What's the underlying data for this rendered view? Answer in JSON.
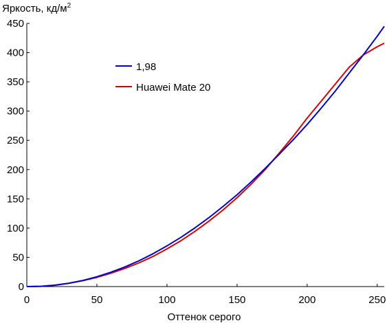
{
  "chart_data": {
    "type": "line",
    "title": "",
    "ylabel": "Яркость, кд/м",
    "ylabel_superscript": "2",
    "xlabel": "Оттенок серого",
    "xlim": [
      0,
      255
    ],
    "ylim": [
      0,
      450
    ],
    "xticks": [
      0,
      50,
      100,
      150,
      200,
      250
    ],
    "yticks": [
      0,
      50,
      100,
      150,
      200,
      250,
      300,
      350,
      400,
      450
    ],
    "grid": false,
    "legend_position": "upper-left",
    "series": [
      {
        "name": "1,98",
        "color": "#0000cc",
        "x": [
          0,
          10,
          20,
          30,
          40,
          50,
          60,
          70,
          80,
          90,
          100,
          110,
          120,
          130,
          140,
          150,
          160,
          170,
          180,
          190,
          200,
          210,
          220,
          230,
          240,
          250,
          255
        ],
        "y": [
          0,
          0.5,
          2.4,
          5.8,
          10.5,
          16.8,
          24.5,
          33.6,
          44.1,
          56.1,
          69.5,
          84.3,
          100.4,
          118.0,
          137.0,
          157.0,
          179.0,
          202.0,
          226.0,
          251.0,
          277.0,
          305.0,
          334.0,
          365.0,
          396.0,
          428.0,
          445.0
        ]
      },
      {
        "name": "Huawei Mate 20",
        "color": "#dd0000",
        "x": [
          0,
          10,
          20,
          30,
          40,
          50,
          60,
          70,
          80,
          90,
          100,
          110,
          120,
          130,
          140,
          150,
          160,
          170,
          180,
          190,
          200,
          210,
          220,
          230,
          240,
          250,
          255
        ],
        "y": [
          0,
          0.5,
          2.3,
          5.6,
          10.1,
          15.8,
          22.8,
          31.0,
          40.5,
          51.5,
          64.5,
          78.5,
          94.5,
          112.0,
          131.0,
          152.0,
          175.0,
          200.0,
          228.0,
          257.0,
          288.0,
          317.0,
          346.0,
          375.0,
          396.0,
          410.0,
          416.0
        ]
      }
    ]
  }
}
